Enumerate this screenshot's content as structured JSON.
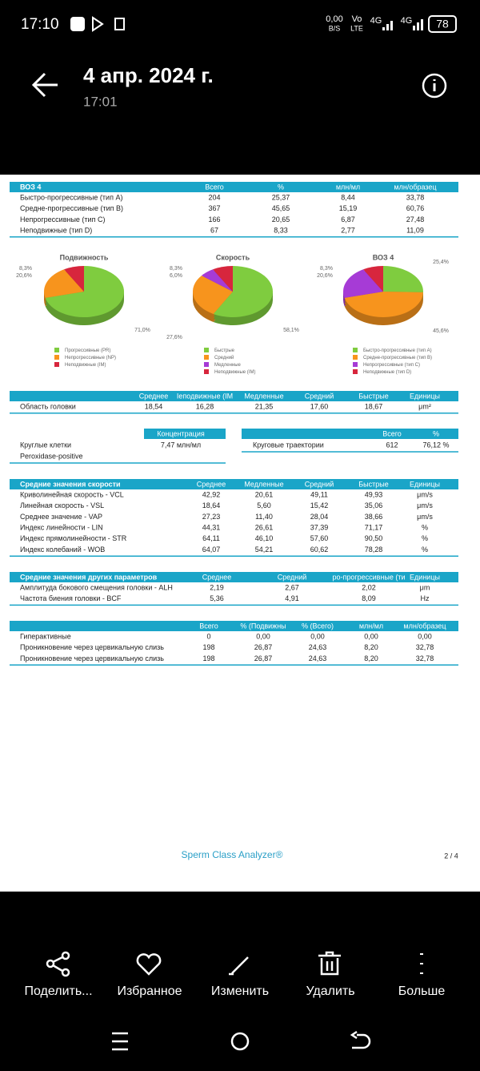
{
  "status_bar": {
    "time": "17:10",
    "net_speed": "0,00",
    "net_unit": "B/S",
    "volte": "Vo",
    "lte": "LTE",
    "net1": "4G",
    "net2": "4G",
    "battery": "78"
  },
  "header": {
    "title": "4 апр. 2024 г.",
    "time": "17:01"
  },
  "document": {
    "motility_table": {
      "title": "ВОЗ 4",
      "columns": [
        "Всего",
        "%",
        "млн/мл",
        "млн/образец"
      ],
      "rows": [
        [
          "Быстро-прогрессивные (тип A)",
          "204",
          "25,37",
          "8,44",
          "33,78"
        ],
        [
          "Средне-прогрессивные (тип B)",
          "367",
          "45,65",
          "15,19",
          "60,76"
        ],
        [
          "Непрогрессивные (тип C)",
          "166",
          "20,65",
          "6,87",
          "27,48"
        ],
        [
          "Неподвижные (тип D)",
          "67",
          "8,33",
          "2,77",
          "11,09"
        ]
      ]
    },
    "pies": [
      {
        "type": "pie",
        "title": "Подвижность",
        "values": [
          71.0,
          20.6,
          8.3
        ],
        "value_labels": [
          "71,0%",
          "20,6%",
          "8,3%"
        ],
        "labels": [
          "Прогрессивные (PR)",
          "Непрогрессивные (NP)",
          "Неподвижные (IM)"
        ],
        "colors": [
          "#7fcc3f",
          "#f7941d",
          "#d7263d"
        ]
      },
      {
        "type": "pie",
        "title": "Скорость",
        "values": [
          58.1,
          27.6,
          6.0,
          8.3
        ],
        "value_labels": [
          "58,1%",
          "27,6%",
          "6,0%",
          "8,3%"
        ],
        "labels": [
          "Быстрые",
          "Средний",
          "Медленные",
          "Неподвижные (IM)"
        ],
        "colors": [
          "#7fcc3f",
          "#f7941d",
          "#a63bd6",
          "#d7263d"
        ]
      },
      {
        "type": "pie",
        "title": "ВОЗ 4",
        "values": [
          25.4,
          45.6,
          20.6,
          8.3
        ],
        "value_labels": [
          "25,4%",
          "45,6%",
          "20,6%",
          "8,3%"
        ],
        "labels": [
          "Быстро-прогрессивные (тип A)",
          "Средне-прогрессивные (тип B)",
          "Непрогрессивные (тип C)",
          "Неподвижные (тип D)"
        ],
        "colors": [
          "#7fcc3f",
          "#f7941d",
          "#a63bd6",
          "#d7263d"
        ]
      }
    ],
    "head_table": {
      "columns": [
        "Среднее",
        "Iеподвижные (IM",
        "Медленные",
        "Средний",
        "Быстрые",
        "Единицы"
      ],
      "rows": [
        [
          "Область головки",
          "18,54",
          "16,28",
          "21,35",
          "17,60",
          "18,67",
          "μm²"
        ]
      ]
    },
    "concentration": {
      "header": "Концентрация",
      "rows": [
        [
          "Круглые клетки",
          "7,47 млн/мл"
        ],
        [
          "Peroxidase-positive"
        ]
      ]
    },
    "trajectories": {
      "columns": [
        "Всего",
        "%"
      ],
      "rows": [
        [
          "Круговые траектории",
          "612",
          "76,12 %"
        ]
      ]
    },
    "velocity_table": {
      "title": "Средние значения скорости",
      "columns": [
        "Среднее",
        "Медленные",
        "Средний",
        "Быстрые",
        "Единицы"
      ],
      "rows": [
        [
          "Криволинейная скорость - VCL",
          "42,92",
          "20,61",
          "49,11",
          "49,93",
          "μm/s"
        ],
        [
          "Линейная скорость - VSL",
          "18,64",
          "5,60",
          "15,42",
          "35,06",
          "μm/s"
        ],
        [
          "Среднее значение - VAP",
          "27,23",
          "11,40",
          "28,04",
          "38,66",
          "μm/s"
        ],
        [
          "Индекс линейности - LIN",
          "44,31",
          "26,61",
          "37,39",
          "71,17",
          "%"
        ],
        [
          "Индекс прямолинейности - STR",
          "64,11",
          "46,10",
          "57,60",
          "90,50",
          "%"
        ],
        [
          "Индекс колебаний - WOB",
          "64,07",
          "54,21",
          "60,62",
          "78,28",
          "%"
        ]
      ]
    },
    "other_table": {
      "title": "Средние значения других параметров",
      "columns": [
        "Среднее",
        "Средний",
        "ро-прогрессивные (ти",
        "Единицы"
      ],
      "rows": [
        [
          "Амплитуда бокового смещения головки - ALH",
          "2,19",
          "2,67",
          "2,02",
          "μm"
        ],
        [
          "Частота биения головки - BCF",
          "5,36",
          "4,91",
          "8,09",
          "Hz"
        ]
      ]
    },
    "penetration_table": {
      "columns": [
        "Всего",
        "% (Подвижны",
        "% (Всего)",
        "млн/мл",
        "млн/образец"
      ],
      "rows": [
        [
          "Гиперактивные",
          "0",
          "0,00",
          "0,00",
          "0,00",
          "0,00"
        ],
        [
          "Проникновение через цервикальную слизь",
          "198",
          "26,87",
          "24,63",
          "8,20",
          "32,78"
        ],
        [
          "Проникновение через цервикальную слизь",
          "198",
          "26,87",
          "24,63",
          "8,20",
          "32,78"
        ]
      ]
    },
    "footer": {
      "brand": "Sperm Class Analyzer®",
      "page": "2 / 4"
    }
  },
  "toolbar": [
    "Поделить...",
    "Избранное",
    "Изменить",
    "Удалить",
    "Больше"
  ]
}
